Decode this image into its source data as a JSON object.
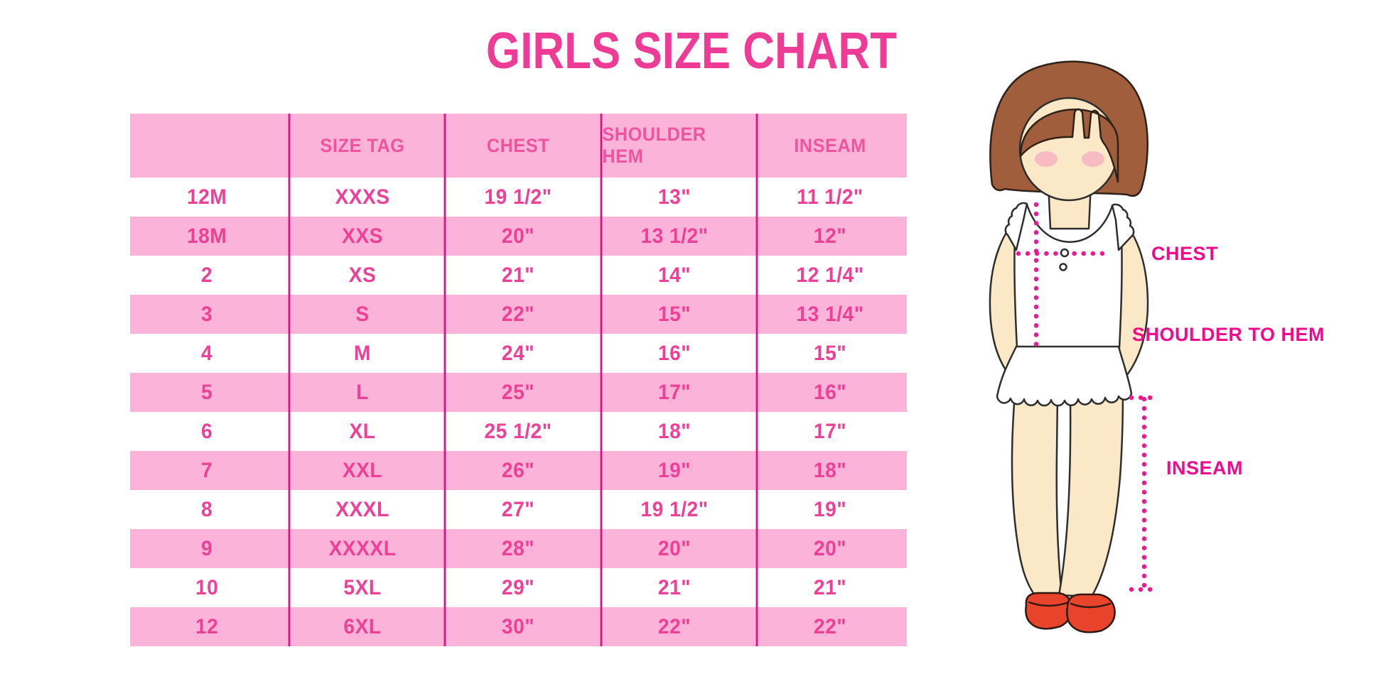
{
  "page": {
    "background": "#ffffff"
  },
  "colors": {
    "title_pink": "#EE3C96",
    "row_pink": "#FBB3D9",
    "grid_magenta": "#DD1383",
    "table_text_pink": "#EE4097",
    "header_text_pink": "#F0549F",
    "label_magenta": "#F2098E",
    "dotted_line_magenta": "#EC1A8E",
    "hair_brown": "#A05E3C",
    "skin": "#FBE8C6",
    "blush_pink": "#F4B3C2",
    "shoe_red": "#E8432B",
    "outline_dark": "#2E2E2E"
  },
  "chart_data": {
    "type": "table",
    "title": "GIRLS SIZE CHART",
    "columns": [
      "",
      "SIZE TAG",
      "CHEST",
      "SHOULDER HEM",
      "INSEAM"
    ],
    "rows": [
      [
        "12M",
        "XXXS",
        "19 1/2\"",
        "13\"",
        "11 1/2\""
      ],
      [
        "18M",
        "XXS",
        "20\"",
        "13 1/2\"",
        "12\""
      ],
      [
        "2",
        "XS",
        "21\"",
        "14\"",
        "12 1/4\""
      ],
      [
        "3",
        "S",
        "22\"",
        "15\"",
        "13 1/4\""
      ],
      [
        "4",
        "M",
        "24\"",
        "16\"",
        "15\""
      ],
      [
        "5",
        "L",
        "25\"",
        "17\"",
        "16\""
      ],
      [
        "6",
        "XL",
        "25 1/2\"",
        "18\"",
        "17\""
      ],
      [
        "7",
        "XXL",
        "26\"",
        "19\"",
        "18\""
      ],
      [
        "8",
        "XXXL",
        "27\"",
        "19 1/2\"",
        "19\""
      ],
      [
        "9",
        "XXXXL",
        "28\"",
        "20\"",
        "20\""
      ],
      [
        "10",
        "5XL",
        "29\"",
        "21\"",
        "21\""
      ],
      [
        "12",
        "6XL",
        "30\"",
        "22\"",
        "22\""
      ]
    ],
    "layout": {
      "row_striping": "white/pink alternating, header pink",
      "grid": "vertical magenta separators only"
    }
  },
  "annotations": {
    "chest": "CHEST",
    "shoulder_to_hem": "SHOULDER TO HEM",
    "inseam": "INSEAM"
  }
}
